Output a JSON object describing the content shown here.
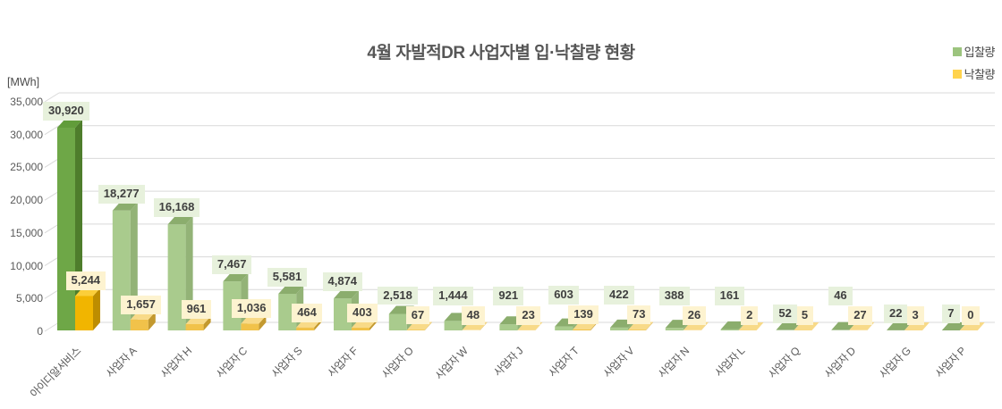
{
  "title": "4월 자발적DR 사업자별 입·낙찰량 현황",
  "y_axis_unit": "[MWh]",
  "legend": {
    "bid_label": "입찰량",
    "award_label": "낙찰량"
  },
  "colors": {
    "legend_bid": "#9CC47E",
    "legend_award": "#FFD34D",
    "bid_primary": {
      "face": "#6EA747",
      "top": "#619C3A",
      "side": "#4E7D2C"
    },
    "bid_secondary": {
      "face": "#A9CB8D",
      "top": "#8BAD6D",
      "side": "#93B377"
    },
    "award_primary": {
      "face": "#F1B500",
      "top": "#FBCE3A",
      "side": "#BD8D00"
    },
    "award_secondary": {
      "face": "#F1C24A",
      "top": "#F8DA88",
      "side": "#C3992F"
    },
    "bid_label_bg": "#E7F1DC",
    "award_label_bg": "#FDF3D0",
    "grid": "#D9D9D9",
    "axis_text": "#595959",
    "label_text": "#3F3F3F"
  },
  "chart_data": {
    "type": "bar",
    "style": "3d-column-pairs",
    "title": "4월 자발적DR 사업자별 입·낙찰량 현황",
    "ylabel": "[MWh]",
    "ylim": [
      0,
      35000
    ],
    "ytick_step": 5000,
    "yticks": [
      "0",
      "5,000",
      "10,000",
      "15,000",
      "20,000",
      "25,000",
      "30,000",
      "35,000"
    ],
    "grid": true,
    "legend_position": "top-right",
    "categories": [
      "아이디알서비스",
      "사업자 A",
      "사업자 H",
      "사업자 C",
      "사업자 S",
      "사업자 F",
      "사업자 O",
      "사업자 W",
      "사업자 J",
      "사업자 T",
      "사업자 V",
      "사업자 N",
      "사업자 L",
      "사업자 Q",
      "사업자 D",
      "사업자 G",
      "사업자 P"
    ],
    "series": [
      {
        "name": "입찰량",
        "values": [
          30920,
          18277,
          16168,
          7467,
          5581,
          4874,
          2518,
          1444,
          921,
          603,
          422,
          388,
          161,
          52,
          46,
          22,
          7
        ]
      },
      {
        "name": "낙찰량",
        "values": [
          5244,
          1657,
          961,
          1036,
          464,
          403,
          67,
          48,
          23,
          139,
          73,
          26,
          2,
          5,
          27,
          3,
          0
        ]
      }
    ],
    "highlighted_category": "아이디알서비스"
  }
}
